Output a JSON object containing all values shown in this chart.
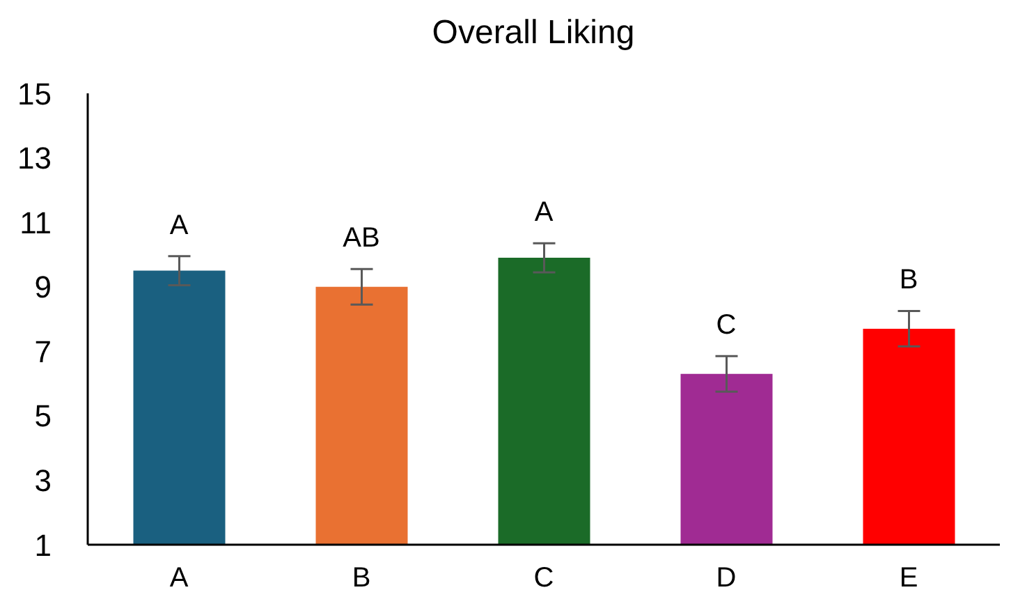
{
  "chart_data": {
    "type": "bar",
    "title": "Overall Liking",
    "categories": [
      "A",
      "B",
      "C",
      "D",
      "E"
    ],
    "values": [
      9.5,
      9.0,
      9.9,
      6.3,
      7.7
    ],
    "colors": [
      "#1a6080",
      "#e97132",
      "#1b6b28",
      "#a02b93",
      "#ff0000"
    ],
    "errors": [
      0.45,
      0.55,
      0.45,
      0.55,
      0.55
    ],
    "ylim": [
      1,
      15
    ],
    "yticks": [
      1,
      3,
      5,
      7,
      9,
      11,
      13,
      15
    ],
    "grid": false,
    "legend": false,
    "annotations": [
      "A",
      "AB",
      "A",
      "C",
      "B"
    ]
  }
}
